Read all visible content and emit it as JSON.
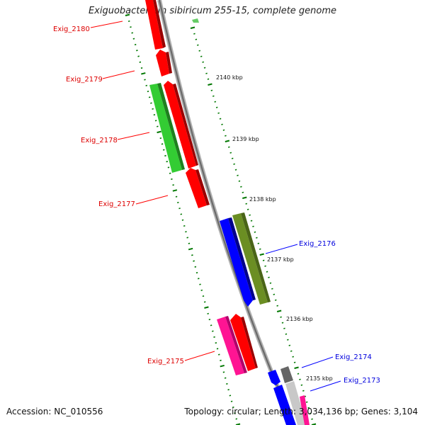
{
  "title": "Exiguobacterium sibiricum 255-15, complete genome",
  "footer": {
    "accession": "Accession: NC_010556",
    "topology": "Topology: circular; Length: 3,034,136 bp; Genes: 3,104"
  },
  "ruler_labels": [
    "2140 kbp",
    "2139 kbp",
    "2138 kbp",
    "2137 kbp",
    "2136 kbp",
    "2135 kbp"
  ],
  "genes": [
    {
      "name": "Exig_2180",
      "strand": "+",
      "color": "#ff0000"
    },
    {
      "name": "Exig_2179",
      "strand": "+",
      "color": "#ff0000"
    },
    {
      "name": "Exig_2178",
      "strand": "-",
      "color": "#33cc33"
    },
    {
      "name": "Exig_2177",
      "strand": "+",
      "color": "#ff0000"
    },
    {
      "name": "Exig_2176",
      "strand": "-",
      "color": "#0000ff"
    },
    {
      "name": "Exig_2175",
      "strand": "+",
      "color": "#ff1493"
    },
    {
      "name": "Exig_2174",
      "strand": "-",
      "color": "#0000ff"
    },
    {
      "name": "Exig_2173",
      "strand": "-",
      "color": "#0000ff"
    }
  ],
  "colors": {
    "red": "#ff0000",
    "green": "#33cc33",
    "olive": "#6b8e23",
    "blue": "#0000ff",
    "pink": "#ff1493",
    "gray": "#666666",
    "label_red": "#dd0000",
    "label_blue": "#0000dd",
    "tick_green": "#007700"
  }
}
